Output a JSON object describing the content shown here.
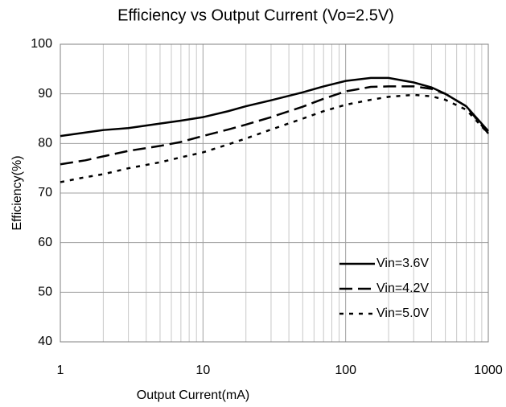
{
  "chart_data": {
    "type": "line",
    "title": "Efficiency vs Output Current (Vo=2.5V)",
    "x_label": "Output Current(mA)",
    "y_label": "Efficiency(%)",
    "x": [
      1,
      1.5,
      2,
      3,
      5,
      7,
      10,
      15,
      20,
      30,
      50,
      70,
      100,
      150,
      200,
      300,
      400,
      500,
      700,
      1000
    ],
    "series": [
      {
        "name": "Vin=3.6V",
        "color": "#000000",
        "dash": "solid",
        "values": [
          81.5,
          82.2,
          82.7,
          83.1,
          84,
          84.6,
          85.3,
          86.5,
          87.5,
          88.7,
          90.3,
          91.5,
          92.6,
          93.2,
          93.2,
          92.3,
          91.3,
          90,
          87.5,
          82.5
        ]
      },
      {
        "name": "Vin=4.2V",
        "color": "#000000",
        "dash": "dashed",
        "values": [
          75.8,
          76.6,
          77.4,
          78.5,
          79.5,
          80.3,
          81.5,
          82.8,
          83.8,
          85.3,
          87.4,
          89,
          90.5,
          91.4,
          91.5,
          91.5,
          91,
          90,
          87.5,
          82
        ]
      },
      {
        "name": "Vin=5.0V",
        "color": "#000000",
        "dash": "dotted",
        "values": [
          72.2,
          73.2,
          73.8,
          75,
          76.2,
          77.2,
          78.2,
          79.8,
          81,
          82.8,
          85,
          86.5,
          87.8,
          88.8,
          89.4,
          89.8,
          89.5,
          88.8,
          86.8,
          82
        ]
      }
    ],
    "xlim": [
      1,
      1000
    ],
    "xticks": [
      1,
      10,
      100,
      1000
    ],
    "x_log": true,
    "ylim": [
      40,
      100
    ],
    "yticks": [
      40,
      50,
      60,
      70,
      80,
      90,
      100
    ],
    "grid": true,
    "minor_grid": true,
    "legend": "lower right"
  }
}
